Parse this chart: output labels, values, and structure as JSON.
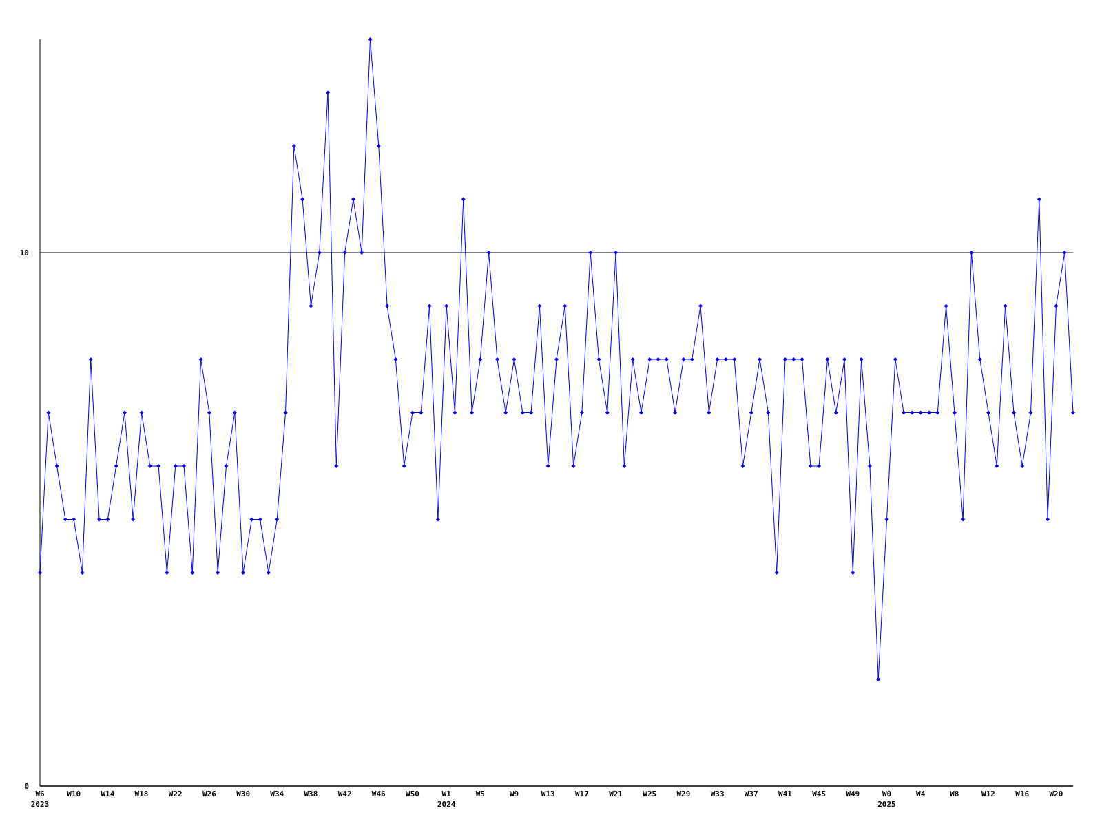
{
  "chart_data": {
    "type": "line",
    "categories": [
      "W6\n2023",
      null,
      null,
      null,
      "W10",
      null,
      null,
      null,
      "W14",
      null,
      null,
      null,
      "W18",
      null,
      null,
      null,
      "W22",
      null,
      null,
      null,
      "W26",
      null,
      null,
      null,
      "W30",
      null,
      null,
      null,
      "W34",
      null,
      null,
      null,
      "W38",
      null,
      null,
      null,
      "W42",
      null,
      null,
      null,
      "W46",
      null,
      null,
      null,
      "W50",
      null,
      null,
      null,
      "W1\n2024",
      null,
      null,
      null,
      "W5",
      null,
      null,
      null,
      "W9",
      null,
      null,
      null,
      "W13",
      null,
      null,
      null,
      "W17",
      null,
      null,
      null,
      "W21",
      null,
      null,
      null,
      "W25",
      null,
      null,
      null,
      "W29",
      null,
      null,
      null,
      "W33",
      null,
      null,
      null,
      "W37",
      null,
      null,
      null,
      "W41",
      null,
      null,
      null,
      "W45",
      null,
      null,
      null,
      "W49",
      null,
      null,
      null,
      "W0\n2025",
      null,
      null,
      null,
      "W4",
      null,
      null,
      null,
      "W8",
      null,
      null,
      null,
      "W12",
      null,
      null,
      null,
      "W16",
      null,
      null,
      null,
      "W20",
      null,
      null
    ],
    "series": [
      {
        "color": "#0000ff",
        "values": [
          4,
          7,
          6,
          5,
          5,
          4,
          8,
          5,
          5,
          6,
          7,
          5,
          7,
          6,
          6,
          4,
          6,
          6,
          4,
          8,
          7,
          4,
          6,
          7,
          4,
          5,
          5,
          4,
          5,
          7,
          12,
          11,
          9,
          10,
          13,
          6,
          10,
          11,
          10,
          14,
          12,
          9,
          8,
          6,
          7,
          7,
          9,
          5,
          9,
          7,
          11,
          7,
          8,
          10,
          8,
          7,
          8,
          7,
          7,
          9,
          6,
          8,
          9,
          6,
          7,
          10,
          8,
          7,
          10,
          6,
          8,
          7,
          8,
          8,
          8,
          7,
          8,
          8,
          9,
          7,
          8,
          8,
          8,
          6,
          7,
          8,
          7,
          4,
          8,
          8,
          8,
          6,
          6,
          8,
          7,
          8,
          4,
          8,
          6,
          2,
          5,
          8,
          7,
          7,
          7,
          7,
          7,
          9,
          7,
          5,
          10,
          8,
          7,
          6,
          9,
          7,
          6,
          7,
          11,
          5,
          9,
          10,
          7
        ]
      }
    ],
    "ylim": [
      0,
      14
    ],
    "yticks": [
      0,
      10
    ],
    "grid": "y",
    "marker": "diamond",
    "line_style": "solid"
  }
}
